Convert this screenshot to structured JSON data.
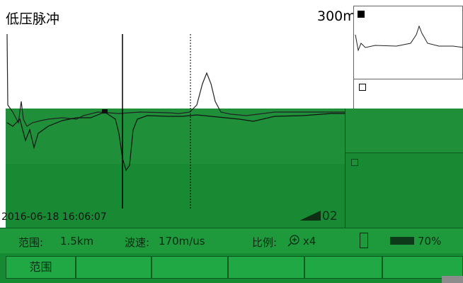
{
  "main": {
    "title": "低压脉冲",
    "range_readout": "300m",
    "timestamp": "2016-06-18 16:06:07",
    "page_number": "02"
  },
  "status": {
    "range_label": "范围:",
    "range_value": "1.5km",
    "velocity_label": "波速:",
    "velocity_value": "170m/us",
    "scale_label": "比例:",
    "scale_value": "x4",
    "battery_percent": "70%"
  },
  "buttons": [
    "范围",
    "",
    "",
    "",
    "",
    ""
  ],
  "colors": {
    "panel_green": "#1f8f3a",
    "panel_green_dark": "#198a34",
    "status_green": "#1e9a3c"
  },
  "icons": [
    "zoom-in-icon",
    "usb-icon",
    "battery-icon"
  ]
}
